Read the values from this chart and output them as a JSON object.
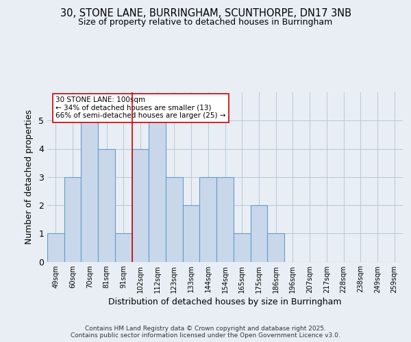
{
  "title1": "30, STONE LANE, BURRINGHAM, SCUNTHORPE, DN17 3NB",
  "title2": "Size of property relative to detached houses in Burringham",
  "xlabel": "Distribution of detached houses by size in Burringham",
  "ylabel": "Number of detached properties",
  "bin_labels": [
    "49sqm",
    "60sqm",
    "70sqm",
    "81sqm",
    "91sqm",
    "102sqm",
    "112sqm",
    "123sqm",
    "133sqm",
    "144sqm",
    "154sqm",
    "165sqm",
    "175sqm",
    "186sqm",
    "196sqm",
    "207sqm",
    "217sqm",
    "228sqm",
    "238sqm",
    "249sqm",
    "259sqm"
  ],
  "bar_heights": [
    1,
    3,
    5,
    4,
    1,
    4,
    5,
    3,
    2,
    3,
    3,
    1,
    2,
    1,
    0,
    0,
    0,
    0,
    0,
    0,
    0
  ],
  "bar_color": "#c8d8ea",
  "bar_edge_color": "#6699cc",
  "highlight_index": 5,
  "highlight_line_color": "#cc0000",
  "annotation_text": "30 STONE LANE: 100sqm\n← 34% of detached houses are smaller (13)\n66% of semi-detached houses are larger (25) →",
  "annotation_box_color": "white",
  "annotation_box_edge": "#cc0000",
  "ylim": [
    0,
    6
  ],
  "yticks": [
    0,
    1,
    2,
    3,
    4,
    5
  ],
  "footer": "Contains HM Land Registry data © Crown copyright and database right 2025.\nContains public sector information licensed under the Open Government Licence v3.0.",
  "bg_color": "#e8eef4",
  "plot_bg_color": "#e8eef4"
}
